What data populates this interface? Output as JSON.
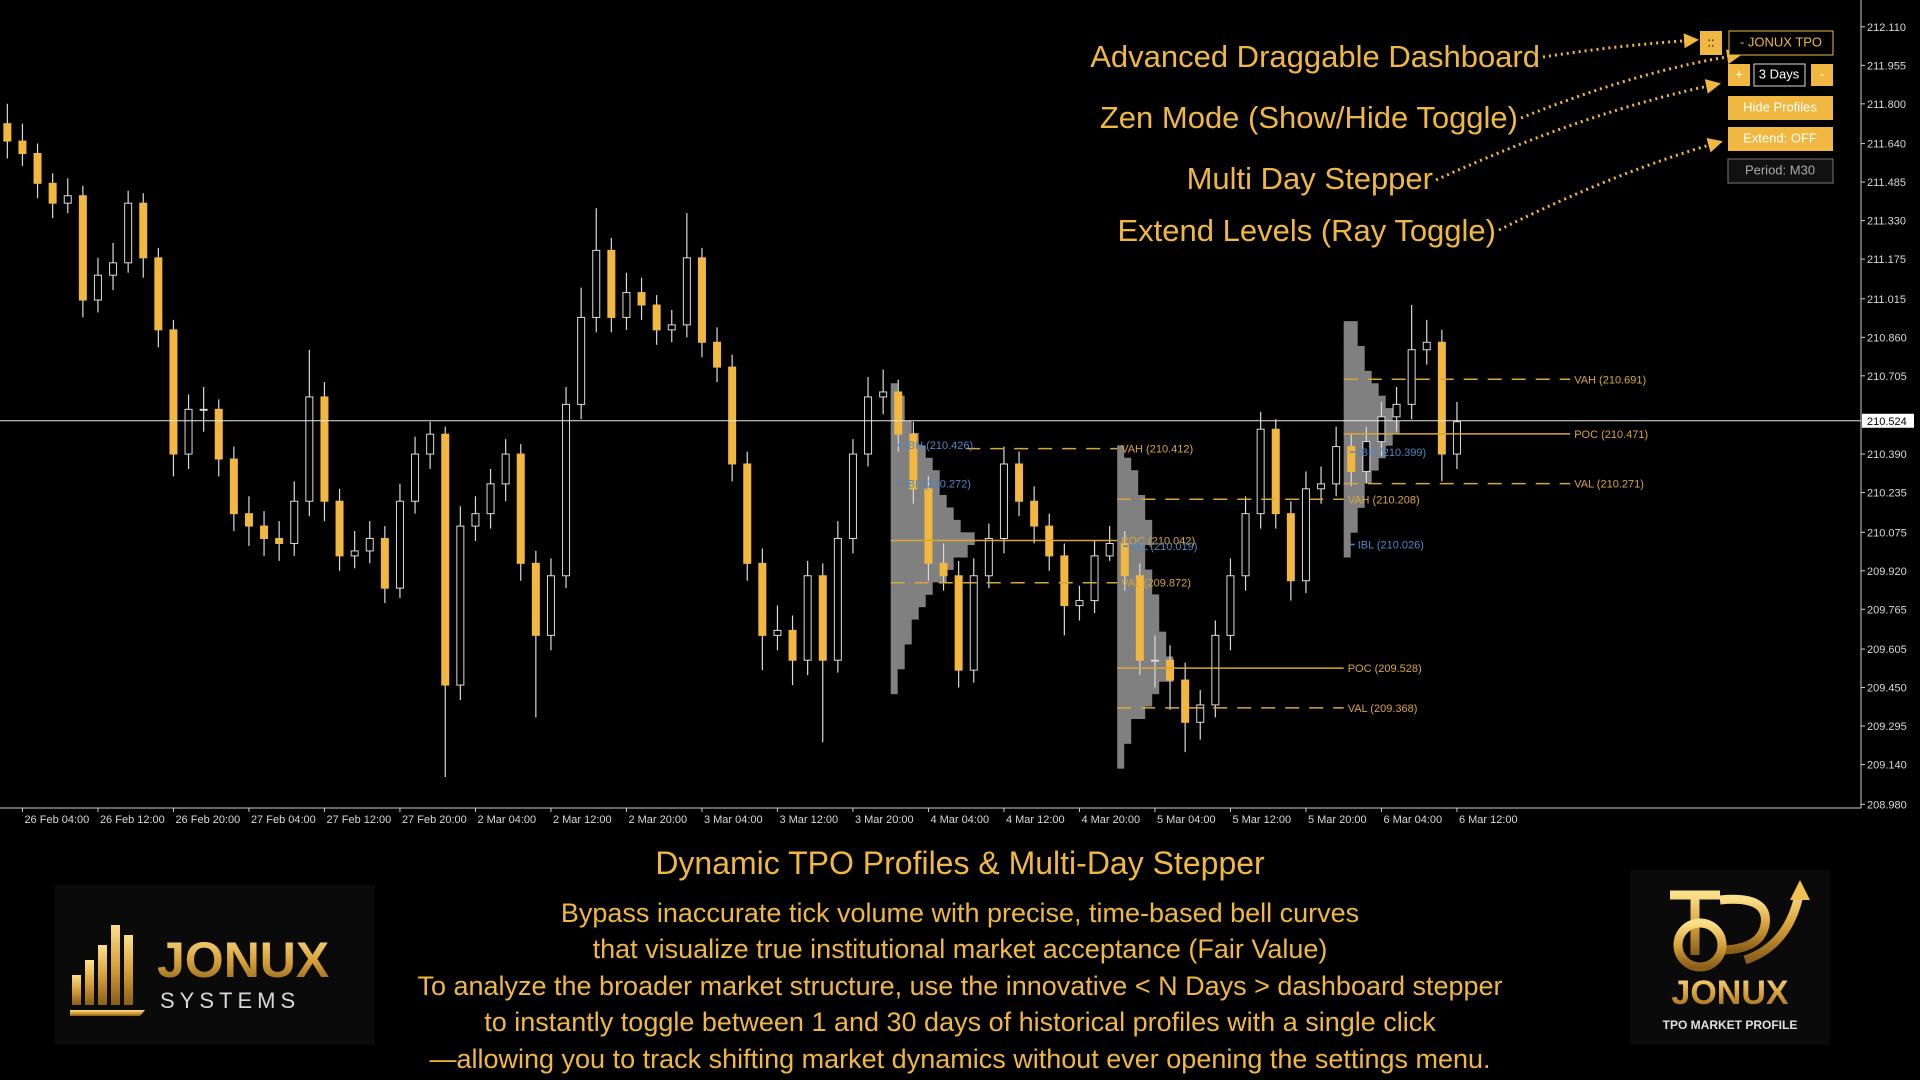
{
  "chart_data": {
    "type": "candlestick",
    "candles": [
      [
        211.72,
        211.8,
        211.58,
        211.65
      ],
      [
        211.65,
        211.72,
        211.55,
        211.6
      ],
      [
        211.6,
        211.64,
        211.42,
        211.48
      ],
      [
        211.48,
        211.52,
        211.34,
        211.4
      ],
      [
        211.4,
        211.5,
        211.36,
        211.43
      ],
      [
        211.43,
        211.47,
        210.94,
        211.01
      ],
      [
        211.01,
        211.18,
        210.96,
        211.11
      ],
      [
        211.11,
        211.24,
        211.05,
        211.16
      ],
      [
        211.16,
        211.45,
        211.12,
        211.4
      ],
      [
        211.4,
        211.44,
        211.1,
        211.18
      ],
      [
        211.18,
        211.22,
        210.82,
        210.89
      ],
      [
        210.89,
        210.93,
        210.3,
        210.39
      ],
      [
        210.39,
        210.63,
        210.33,
        210.57
      ],
      [
        210.57,
        210.66,
        210.48,
        210.57
      ],
      [
        210.57,
        210.61,
        210.3,
        210.37
      ],
      [
        210.37,
        210.42,
        210.08,
        210.15
      ],
      [
        210.15,
        210.22,
        210.02,
        210.1
      ],
      [
        210.1,
        210.16,
        209.98,
        210.05
      ],
      [
        210.05,
        210.12,
        209.96,
        210.03
      ],
      [
        210.03,
        210.28,
        209.98,
        210.2
      ],
      [
        210.2,
        210.81,
        210.14,
        210.62
      ],
      [
        210.62,
        210.68,
        210.12,
        210.2
      ],
      [
        210.2,
        210.25,
        209.92,
        209.98
      ],
      [
        209.98,
        210.08,
        209.93,
        210.0
      ],
      [
        210.0,
        210.12,
        209.95,
        210.05
      ],
      [
        210.05,
        210.1,
        209.79,
        209.85
      ],
      [
        209.85,
        210.27,
        209.81,
        210.2
      ],
      [
        210.2,
        210.46,
        210.15,
        210.39
      ],
      [
        210.39,
        210.52,
        210.33,
        210.47
      ],
      [
        210.47,
        210.5,
        209.09,
        209.46
      ],
      [
        209.46,
        210.18,
        209.4,
        210.1
      ],
      [
        210.1,
        210.22,
        210.04,
        210.15
      ],
      [
        210.15,
        210.33,
        210.09,
        210.27
      ],
      [
        210.27,
        210.45,
        210.2,
        210.39
      ],
      [
        210.39,
        210.43,
        209.88,
        209.95
      ],
      [
        209.95,
        210.0,
        209.33,
        209.66
      ],
      [
        209.66,
        209.97,
        209.6,
        209.9
      ],
      [
        209.9,
        210.66,
        209.85,
        210.59
      ],
      [
        210.59,
        211.06,
        210.53,
        210.94
      ],
      [
        210.94,
        211.38,
        210.88,
        211.21
      ],
      [
        211.21,
        211.26,
        210.88,
        210.94
      ],
      [
        210.94,
        211.12,
        210.89,
        211.04
      ],
      [
        211.04,
        211.1,
        210.93,
        210.99
      ],
      [
        210.99,
        211.03,
        210.83,
        210.89
      ],
      [
        210.89,
        210.97,
        210.84,
        210.91
      ],
      [
        210.91,
        211.36,
        210.86,
        211.18
      ],
      [
        211.18,
        211.22,
        210.78,
        210.84
      ],
      [
        210.84,
        210.9,
        210.68,
        210.74
      ],
      [
        210.74,
        210.79,
        210.28,
        210.35
      ],
      [
        210.35,
        210.4,
        209.88,
        209.95
      ],
      [
        209.95,
        210.01,
        209.52,
        209.66
      ],
      [
        209.66,
        209.78,
        209.6,
        209.68
      ],
      [
        209.68,
        209.74,
        209.46,
        209.56
      ],
      [
        209.56,
        209.96,
        209.5,
        209.9
      ],
      [
        209.9,
        209.95,
        209.23,
        209.56
      ],
      [
        209.56,
        210.12,
        209.51,
        210.05
      ],
      [
        210.05,
        210.45,
        209.99,
        210.39
      ],
      [
        210.39,
        210.7,
        210.34,
        210.62
      ],
      [
        210.62,
        210.73,
        210.55,
        210.64
      ],
      [
        210.64,
        210.69,
        210.4,
        210.47
      ],
      [
        210.47,
        210.52,
        210.19,
        210.25
      ],
      [
        210.25,
        210.3,
        209.88,
        209.95
      ],
      [
        209.95,
        210.03,
        209.84,
        209.9
      ],
      [
        209.9,
        209.96,
        209.45,
        209.52
      ],
      [
        209.52,
        209.97,
        209.47,
        209.9
      ],
      [
        209.9,
        210.11,
        209.85,
        210.05
      ],
      [
        210.05,
        210.42,
        209.99,
        210.35
      ],
      [
        210.35,
        210.4,
        210.14,
        210.2
      ],
      [
        210.2,
        210.26,
        210.03,
        210.1
      ],
      [
        210.1,
        210.15,
        209.92,
        209.98
      ],
      [
        209.98,
        210.03,
        209.66,
        209.78
      ],
      [
        209.78,
        209.86,
        209.72,
        209.8
      ],
      [
        209.8,
        210.04,
        209.75,
        209.98
      ],
      [
        209.98,
        210.1,
        209.96,
        210.03
      ],
      [
        210.03,
        210.08,
        209.84,
        209.9
      ],
      [
        209.9,
        209.95,
        209.5,
        209.56
      ],
      [
        209.56,
        209.66,
        209.45,
        209.56
      ],
      [
        209.56,
        209.62,
        209.36,
        209.48
      ],
      [
        209.48,
        209.55,
        209.19,
        209.31
      ],
      [
        209.31,
        209.44,
        209.24,
        209.38
      ],
      [
        209.38,
        209.72,
        209.33,
        209.66
      ],
      [
        209.66,
        209.97,
        209.6,
        209.9
      ],
      [
        209.9,
        210.22,
        209.84,
        210.15
      ],
      [
        210.15,
        210.56,
        210.09,
        210.49
      ],
      [
        210.49,
        210.53,
        210.09,
        210.15
      ],
      [
        210.15,
        210.2,
        209.8,
        209.88
      ],
      [
        209.88,
        210.32,
        209.83,
        210.25
      ],
      [
        210.25,
        210.34,
        210.19,
        210.27
      ],
      [
        210.27,
        210.5,
        210.22,
        210.42
      ],
      [
        210.42,
        210.47,
        210.26,
        210.32
      ],
      [
        210.32,
        210.5,
        210.27,
        210.44
      ],
      [
        210.44,
        210.6,
        210.38,
        210.54
      ],
      [
        210.54,
        210.66,
        210.48,
        210.59
      ],
      [
        210.59,
        210.99,
        210.53,
        210.81
      ],
      [
        210.81,
        210.93,
        210.75,
        210.84
      ],
      [
        210.84,
        210.89,
        210.28,
        210.39
      ],
      [
        210.39,
        210.6,
        210.33,
        210.52
      ]
    ],
    "up_color": "#000000",
    "down_color": "#f2b73f",
    "wick_color": "#d9d9d9",
    "xticks": [
      {
        "value": 1,
        "label": "26 Feb 04:00"
      },
      {
        "value": 6,
        "label": "26 Feb 12:00"
      },
      {
        "value": 11,
        "label": "26 Feb 20:00"
      },
      {
        "value": 16,
        "label": "27 Feb 04:00"
      },
      {
        "value": 21,
        "label": "27 Feb 12:00"
      },
      {
        "value": 26,
        "label": "27 Feb 20:00"
      },
      {
        "value": 31,
        "label": "2 Mar 04:00"
      },
      {
        "value": 36,
        "label": "2 Mar 12:00"
      },
      {
        "value": 41,
        "label": "2 Mar 20:00"
      },
      {
        "value": 46,
        "label": "3 Mar 04:00"
      },
      {
        "value": 51,
        "label": "3 Mar 12:00"
      },
      {
        "value": 56,
        "label": "3 Mar 20:00"
      },
      {
        "value": 61,
        "label": "4 Mar 04:00"
      },
      {
        "value": 66,
        "label": "4 Mar 12:00"
      },
      {
        "value": 71,
        "label": "4 Mar 20:00"
      },
      {
        "value": 76,
        "label": "5 Mar 04:00"
      },
      {
        "value": 81,
        "label": "5 Mar 12:00"
      },
      {
        "value": 86,
        "label": "5 Mar 20:00"
      },
      {
        "value": 91,
        "label": "6 Mar 04:00"
      },
      {
        "value": 96,
        "label": "6 Mar 12:00"
      }
    ],
    "ylim": [
      208.965,
      212.218
    ],
    "yticks": [
      {
        "value": 212.11,
        "label": "212.110"
      },
      211.955,
      {
        "value": 211.8,
        "label": "211.800"
      },
      {
        "value": 211.64,
        "label": "211.640"
      },
      211.485,
      {
        "value": 211.33,
        "label": "211.330"
      },
      211.175,
      211.015,
      {
        "value": 210.86,
        "label": "210.860"
      },
      210.705,
      {
        "value": 210.39,
        "label": "210.390"
      },
      210.235,
      210.075,
      {
        "value": 209.92,
        "label": "209.920"
      },
      209.765,
      209.605,
      {
        "value": 209.45,
        "label": "209.450"
      },
      209.295,
      {
        "value": 209.14,
        "label": "209.140"
      },
      {
        "value": 208.98,
        "label": "208.980"
      }
    ],
    "current_price": 210.524,
    "profile_color": "#808080",
    "profiles": [
      {
        "start": 59,
        "prices": [
          210.65,
          210.6,
          210.55,
          210.5,
          210.45,
          210.4,
          210.35,
          210.3,
          210.25,
          210.2,
          210.15,
          210.1,
          210.05,
          210.0,
          209.95,
          209.9,
          209.85,
          209.8,
          209.75,
          209.7,
          209.65,
          209.6,
          209.55,
          209.5,
          209.45
        ],
        "counts": [
          1,
          2,
          2,
          3,
          4,
          5,
          6,
          7,
          7,
          8,
          9,
          10,
          12,
          11,
          9,
          8,
          6,
          5,
          4,
          3,
          3,
          2,
          2,
          1,
          1
        ]
      },
      {
        "start": 74,
        "prices": [
          210.4,
          210.35,
          210.3,
          210.25,
          210.2,
          210.15,
          210.1,
          210.05,
          210.0,
          209.95,
          209.9,
          209.85,
          209.8,
          209.75,
          209.7,
          209.65,
          209.6,
          209.55,
          209.5,
          209.45,
          209.4,
          209.35,
          209.3,
          209.25,
          209.2,
          209.15
        ],
        "counts": [
          1,
          2,
          3,
          3,
          4,
          4,
          5,
          5,
          4,
          4,
          5,
          5,
          6,
          6,
          6,
          7,
          7,
          8,
          8,
          6,
          5,
          4,
          2,
          2,
          1,
          1
        ]
      },
      {
        "start": 89,
        "prices": [
          210.9,
          210.85,
          210.8,
          210.75,
          210.7,
          210.65,
          210.6,
          210.55,
          210.5,
          210.45,
          210.4,
          210.35,
          210.3,
          210.25,
          210.2,
          210.15,
          210.1,
          210.05,
          210.0
        ],
        "counts": [
          2,
          2,
          3,
          3,
          4,
          5,
          6,
          7,
          8,
          7,
          6,
          5,
          4,
          3,
          3,
          2,
          2,
          1,
          1
        ]
      }
    ],
    "level_color": "#d9a63a",
    "ib_color": "#4f86c6",
    "levels": [
      {
        "label": "VAH (210.412)",
        "value": 210.412,
        "start": 64,
        "end": 73,
        "style": "dashed"
      },
      {
        "label": "POC (210.042)",
        "value": 210.042,
        "start": 59,
        "end": 73,
        "style": "solid"
      },
      {
        "label": "VAL (209.872)",
        "value": 209.872,
        "start": 59,
        "end": 73,
        "style": "dashed"
      },
      {
        "label": "IBH (210.426)",
        "value": 210.426,
        "start": 59,
        "style": "ib"
      },
      {
        "label": "IBL (210.272)",
        "value": 210.272,
        "start": 59,
        "style": "ib"
      },
      {
        "label": "VAH (210.208)",
        "value": 210.208,
        "start": 74,
        "end": 88,
        "style": "dashed"
      },
      {
        "label": "POC (209.528)",
        "value": 209.528,
        "start": 74,
        "end": 88,
        "style": "solid"
      },
      {
        "label": "VAL (209.368)",
        "value": 209.368,
        "start": 74,
        "end": 88,
        "style": "dashed"
      },
      {
        "label": "IBL (210.019)",
        "value": 210.019,
        "start": 74,
        "style": "ib"
      },
      {
        "label": "VAH (210.691)",
        "value": 210.691,
        "start": 89,
        "end": 103,
        "style": "dashed"
      },
      {
        "label": "POC (210.471)",
        "value": 210.471,
        "start": 89,
        "end": 103,
        "style": "solid"
      },
      {
        "label": "VAL (210.271)",
        "value": 210.271,
        "start": 89,
        "end": 103,
        "style": "dashed"
      },
      {
        "label": "IBH (210.399)",
        "value": 210.399,
        "start": 89,
        "style": "ib"
      },
      {
        "label": "IBL (210.026)",
        "value": 210.026,
        "start": 89,
        "style": "ib"
      }
    ]
  },
  "dashboard": {
    "handle": "::",
    "title": "- JONUX TPO",
    "plus": "+",
    "days": "3 Days",
    "minus": "-",
    "hide": "Hide Profiles",
    "extend": "Extend: OFF",
    "period": "Period: M30"
  },
  "callouts": [
    "Advanced Draggable Dashboard",
    "Zen Mode (Show/Hide Toggle)",
    "Multi Day Stepper",
    "Extend Levels (Ray Toggle)"
  ],
  "caption": {
    "title": "Dynamic TPO Profiles & Multi-Day Stepper",
    "lines": [
      "Bypass inaccurate tick volume with precise, time-based bell curves",
      "that visualize true institutional market acceptance (Fair Value)",
      "To analyze the broader market structure, use the innovative < N Days > dashboard stepper",
      "to instantly toggle between 1 and 30 days of historical profiles with a single click",
      "—allowing you to track shifting market dynamics without ever opening the settings menu."
    ]
  },
  "logos": {
    "left": {
      "name": "JONUX",
      "sub": "SYSTEMS"
    },
    "right": {
      "name": "JONUX",
      "sub": "TPO MARKET PROFILE"
    }
  }
}
